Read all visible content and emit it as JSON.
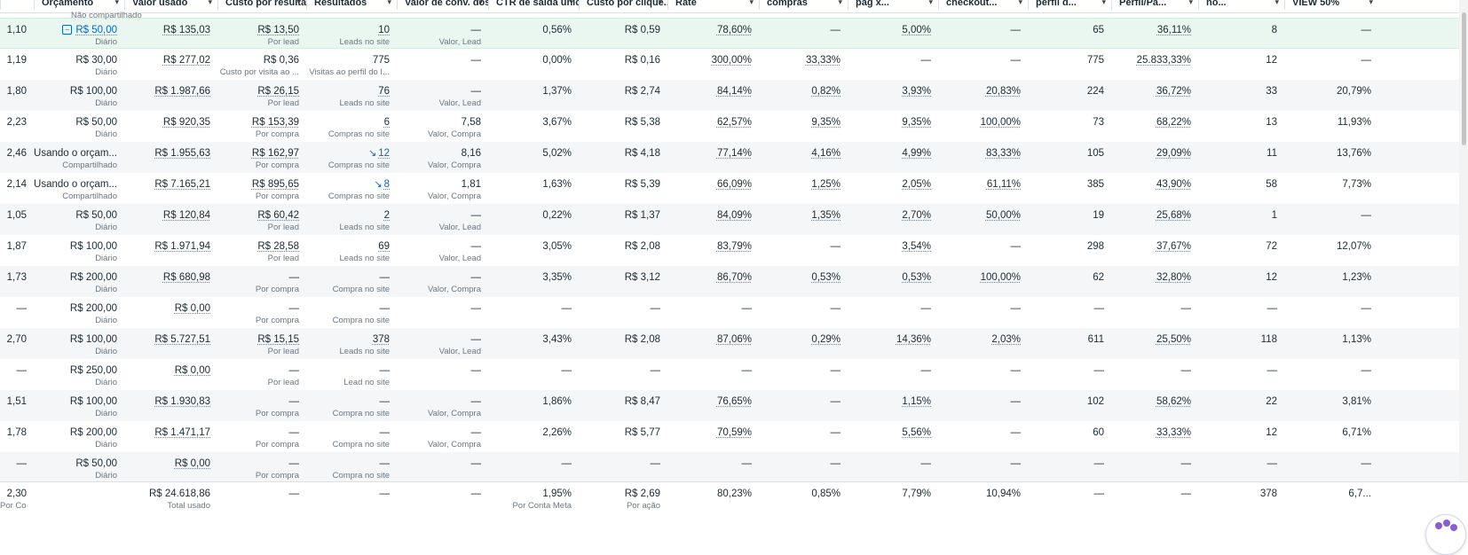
{
  "header": {
    "columns": [
      {
        "key": "c0",
        "label": ""
      },
      {
        "key": "c1",
        "label": "Orçamento"
      },
      {
        "key": "c2",
        "label": "Valor usado"
      },
      {
        "key": "c3",
        "label": "Custo por resultado"
      },
      {
        "key": "c4",
        "label": "Resultados"
      },
      {
        "key": "c5",
        "label": "Valor de conv. dos resultados"
      },
      {
        "key": "c6",
        "label": "CTR de saída único"
      },
      {
        "key": "c7",
        "label": "Custo por clique..."
      },
      {
        "key": "c8",
        "label": "Rate"
      },
      {
        "key": "c9",
        "label": "compras"
      },
      {
        "key": "c10",
        "label": "pag x..."
      },
      {
        "key": "c11",
        "label": "checkout..."
      },
      {
        "key": "c12",
        "label": "perfil d..."
      },
      {
        "key": "c13",
        "label": "Perfil/Pá..."
      },
      {
        "key": "c14",
        "label": "no..."
      },
      {
        "key": "c15",
        "label": "VIEW 50%"
      }
    ]
  },
  "top_note": "Não compartilhado",
  "rows": [
    {
      "c0": "1,10",
      "c1": "R$ 50,00",
      "c1s": "Diário",
      "c2": "R$ 135,03",
      "c3": "R$ 13,50",
      "c3s": "Por lead",
      "c4": "10",
      "c4s": "Leads no site",
      "c5": "—",
      "c5s": "Valor, Lead",
      "c6": "0,56%",
      "c7": "R$ 0,59",
      "c8": "78,60%",
      "c9": "—",
      "c10": "5,00%",
      "c11": "—",
      "c12": "65",
      "c13": "36,11%",
      "c14": "8",
      "c15": "—"
    },
    {
      "c0": "1,19",
      "c1": "R$ 30,00",
      "c1s": "Diário",
      "c2": "R$ 277,02",
      "c3": "R$ 0,36",
      "c3s": "Custo por visita ao ...",
      "c4": "775",
      "c4s": "Visitas ao perfil do I...",
      "c5": "—",
      "c5s": "",
      "c6": "0,00%",
      "c7": "R$ 0,16",
      "c8": "300,00%",
      "c9": "33,33%",
      "c10": "—",
      "c11": "—",
      "c12": "775",
      "c13": "25.833,33%",
      "c14": "12",
      "c15": "—"
    },
    {
      "c0": "1,80",
      "c1": "R$ 100,00",
      "c1s": "Diário",
      "c2": "R$ 1.987,66",
      "c3": "R$ 26,15",
      "c3s": "Por lead",
      "c4": "76",
      "c4s": "Leads no site",
      "c5": "—",
      "c5s": "Valor, Lead",
      "c6": "1,37%",
      "c7": "R$ 2,74",
      "c8": "84,14%",
      "c9": "0,82%",
      "c10": "3,93%",
      "c11": "20,83%",
      "c12": "224",
      "c13": "36,72%",
      "c14": "33",
      "c15": "20,79%"
    },
    {
      "c0": "2,23",
      "c1": "R$ 50,00",
      "c1s": "Diário",
      "c2": "R$ 920,35",
      "c3": "R$ 153,39",
      "c3s": "Por compra",
      "c4": "6",
      "c4s": "Compras no site",
      "c5": "7,58",
      "c5s": "Valor, Compra",
      "c6": "3,67%",
      "c7": "R$ 5,38",
      "c8": "62,57%",
      "c9": "9,35%",
      "c10": "9,35%",
      "c11": "100,00%",
      "c12": "73",
      "c13": "68,22%",
      "c14": "13",
      "c15": "11,93%"
    },
    {
      "c0": "2,46",
      "c1": "Usando o orçam...",
      "c1s": "Compartilhado",
      "c2": "R$ 1.955,63",
      "c3": "R$ 162,97",
      "c3s": "Por compra",
      "c4": "12",
      "c4s": "Compras no site",
      "c5": "8,16",
      "c5s": "Valor, Compra",
      "c6": "5,02%",
      "c7": "R$ 4,18",
      "c8": "77,14%",
      "c9": "4,16%",
      "c10": "4,99%",
      "c11": "83,33%",
      "c12": "105",
      "c13": "29,09%",
      "c14": "11",
      "c15": "13,76%"
    },
    {
      "c0": "2,14",
      "c1": "Usando o orçam...",
      "c1s": "Compartilhado",
      "c2": "R$ 7.165,21",
      "c3": "R$ 895,65",
      "c3s": "Por compra",
      "c4": "8",
      "c4s": "Compras no site",
      "c5": "1,81",
      "c5s": "Valor, Compra",
      "c6": "1,63%",
      "c7": "R$ 5,39",
      "c8": "66,09%",
      "c9": "1,25%",
      "c10": "2,05%",
      "c11": "61,11%",
      "c12": "385",
      "c13": "43,90%",
      "c14": "58",
      "c15": "7,73%"
    },
    {
      "c0": "1,05",
      "c1": "R$ 50,00",
      "c1s": "Diário",
      "c2": "R$ 120,84",
      "c3": "R$ 60,42",
      "c3s": "Por lead",
      "c4": "2",
      "c4s": "Leads no site",
      "c5": "—",
      "c5s": "Valor, Lead",
      "c6": "0,22%",
      "c7": "R$ 1,37",
      "c8": "84,09%",
      "c9": "1,35%",
      "c10": "2,70%",
      "c11": "50,00%",
      "c12": "19",
      "c13": "25,68%",
      "c14": "1",
      "c15": "—"
    },
    {
      "c0": "1,87",
      "c1": "R$ 100,00",
      "c1s": "Diário",
      "c2": "R$ 1.971,94",
      "c3": "R$ 28,58",
      "c3s": "Por lead",
      "c4": "69",
      "c4s": "Leads no site",
      "c5": "—",
      "c5s": "Valor, Lead",
      "c6": "3,05%",
      "c7": "R$ 2,08",
      "c8": "83,79%",
      "c9": "—",
      "c10": "3,54%",
      "c11": "—",
      "c12": "298",
      "c13": "37,67%",
      "c14": "72",
      "c15": "12,07%"
    },
    {
      "c0": "1,73",
      "c1": "R$ 200,00",
      "c1s": "Diário",
      "c2": "R$ 680,98",
      "c3": "—",
      "c3s": "Por compra",
      "c4": "—",
      "c4s": "Compra no site",
      "c5": "—",
      "c5s": "Valor, Compra",
      "c6": "3,35%",
      "c7": "R$ 3,12",
      "c8": "86,70%",
      "c9": "0,53%",
      "c10": "0,53%",
      "c11": "100,00%",
      "c12": "62",
      "c13": "32,80%",
      "c14": "12",
      "c15": "1,23%"
    },
    {
      "c0": "—",
      "c1": "R$ 200,00",
      "c1s": "Diário",
      "c2": "R$ 0,00",
      "c3": "—",
      "c3s": "Por compra",
      "c4": "—",
      "c4s": "Compra no site",
      "c5": "—",
      "c5s": "",
      "c6": "—",
      "c7": "—",
      "c8": "—",
      "c9": "—",
      "c10": "—",
      "c11": "—",
      "c12": "—",
      "c13": "—",
      "c14": "—",
      "c15": "—"
    },
    {
      "c0": "2,70",
      "c1": "R$ 100,00",
      "c1s": "Diário",
      "c2": "R$ 5.727,51",
      "c3": "R$ 15,15",
      "c3s": "Por lead",
      "c4": "378",
      "c4s": "Leads no site",
      "c5": "—",
      "c5s": "Valor, Lead",
      "c6": "3,43%",
      "c7": "R$ 2,08",
      "c8": "87,06%",
      "c9": "0,29%",
      "c10": "14,36%",
      "c11": "2,03%",
      "c12": "611",
      "c13": "25,50%",
      "c14": "118",
      "c15": "1,13%"
    },
    {
      "c0": "—",
      "c1": "R$ 250,00",
      "c1s": "Diário",
      "c2": "R$ 0,00",
      "c3": "—",
      "c3s": "Por lead",
      "c4": "—",
      "c4s": "Lead no site",
      "c5": "—",
      "c5s": "",
      "c6": "—",
      "c7": "—",
      "c8": "—",
      "c9": "—",
      "c10": "—",
      "c11": "—",
      "c12": "—",
      "c13": "—",
      "c14": "—",
      "c15": "—"
    },
    {
      "c0": "1,51",
      "c1": "R$ 100,00",
      "c1s": "Diário",
      "c2": "R$ 1.930,83",
      "c3": "—",
      "c3s": "Por compra",
      "c4": "—",
      "c4s": "Compra no site",
      "c5": "—",
      "c5s": "Valor, Compra",
      "c6": "1,86%",
      "c7": "R$ 8,47",
      "c8": "76,65%",
      "c9": "—",
      "c10": "1,15%",
      "c11": "—",
      "c12": "102",
      "c13": "58,62%",
      "c14": "22",
      "c15": "3,81%"
    },
    {
      "c0": "1,78",
      "c1": "R$ 200,00",
      "c1s": "Diário",
      "c2": "R$ 1.471,17",
      "c3": "—",
      "c3s": "Por compra",
      "c4": "—",
      "c4s": "Compra no site",
      "c5": "—",
      "c5s": "Valor, Compra",
      "c6": "2,26%",
      "c7": "R$ 5,77",
      "c8": "70,59%",
      "c9": "—",
      "c10": "5,56%",
      "c11": "—",
      "c12": "60",
      "c13": "33,33%",
      "c14": "12",
      "c15": "6,71%"
    },
    {
      "c0": "—",
      "c1": "R$ 50,00",
      "c1s": "Diário",
      "c2": "R$ 0,00",
      "c3": "—",
      "c3s": "Por compra",
      "c4": "—",
      "c4s": "Compra no site",
      "c5": "—",
      "c5s": "",
      "c6": "—",
      "c7": "—",
      "c8": "—",
      "c9": "—",
      "c10": "—",
      "c11": "—",
      "c12": "—",
      "c13": "—",
      "c14": "—",
      "c15": "—"
    }
  ],
  "footer": {
    "c0": "2,30",
    "c0s": "Por Conta Meta",
    "c1": "",
    "c1s": "",
    "c2": "R$ 24.618,86",
    "c2s": "Total usado",
    "c3": "—",
    "c3s": "",
    "c4": "—",
    "c4s": "",
    "c5": "—",
    "c5s": "",
    "c6": "1,95%",
    "c6s": "Por Conta Meta",
    "c7": "R$ 2,69",
    "c7s": "Por ação",
    "c8": "80,23%",
    "c8s": "",
    "c9": "0,85%",
    "c9s": "",
    "c10": "7,79%",
    "c10s": "",
    "c11": "10,94%",
    "c11s": "",
    "c12": "—",
    "c12s": "",
    "c13": "—",
    "c13s": "",
    "c14": "378",
    "c14s": "",
    "c15": "6,7...",
    "c15s": ""
  },
  "icons": {
    "budget": "edit-budget-icon",
    "trend": "trend-down-icon",
    "assistant": "meta-ai-assistant-icon",
    "chevron": "chevron-down-icon"
  },
  "colors": {
    "link": "#0a66c2",
    "selected_row": "#eaf7f0",
    "alt_row": "#f5f6f7"
  }
}
